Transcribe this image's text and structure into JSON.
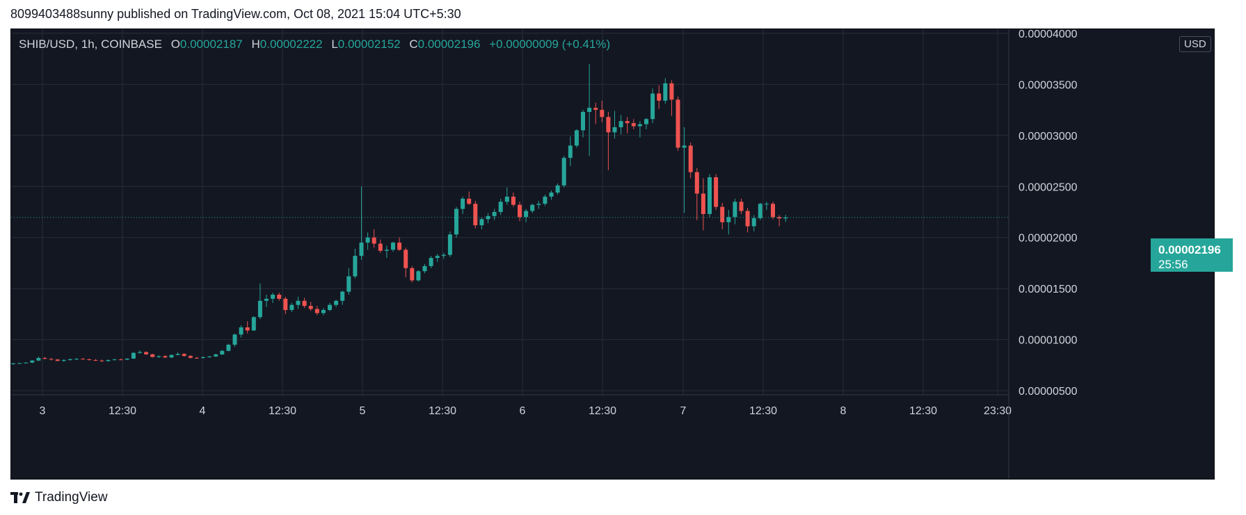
{
  "header": {
    "publish_line": "8099403488sunny published on TradingView.com, Oct 08, 2021 15:04 UTC+5:30"
  },
  "legend": {
    "symbol": "SHIB/USD, 1h, COINBASE",
    "open_label": "O",
    "open": "0.00002187",
    "high_label": "H",
    "high": "0.00002222",
    "low_label": "L",
    "low": "0.00002152",
    "close_label": "C",
    "close": "0.00002196",
    "change": "+0.00000009 (+0.41%)"
  },
  "currency": "USD",
  "last_price": {
    "price": "0.00002196",
    "countdown": "25:56"
  },
  "footer": {
    "brand": "TradingView"
  },
  "colors": {
    "background": "#131722",
    "grid": "#2a2e39",
    "text": "#d1d4dc",
    "up": "#26a69a",
    "down": "#ef5350"
  },
  "chart_data": {
    "type": "candlestick",
    "symbol": "SHIB/USD",
    "interval": "1h",
    "exchange": "COINBASE",
    "x_tick_labels": [
      "3",
      "12:30",
      "4",
      "12:30",
      "5",
      "12:30",
      "6",
      "12:30",
      "7",
      "12:30",
      "8",
      "12:30",
      "23:30"
    ],
    "y_tick_labels": [
      "0.00000500",
      "0.00001000",
      "0.00001500",
      "0.00002000",
      "0.00002500",
      "0.00003000",
      "0.00003500",
      "0.00004000"
    ],
    "y_ticks": [
      5e-06,
      1e-05,
      1.5e-05,
      2e-05,
      2.5e-05,
      3e-05,
      3.5e-05,
      4e-05
    ],
    "ylim": [
      4.6e-06,
      4.04e-05
    ],
    "grid": true,
    "last_price": 2.196e-05,
    "candles_unit": 1e-08,
    "candles": [
      [
        760,
        770,
        755,
        768
      ],
      [
        768,
        773,
        762,
        770
      ],
      [
        770,
        778,
        765,
        775
      ],
      [
        775,
        800,
        770,
        795
      ],
      [
        795,
        835,
        790,
        820
      ],
      [
        820,
        832,
        808,
        812
      ],
      [
        812,
        818,
        795,
        805
      ],
      [
        805,
        812,
        788,
        792
      ],
      [
        792,
        808,
        782,
        800
      ],
      [
        800,
        815,
        795,
        808
      ],
      [
        808,
        818,
        800,
        812
      ],
      [
        812,
        820,
        805,
        807
      ],
      [
        807,
        815,
        795,
        800
      ],
      [
        800,
        810,
        790,
        795
      ],
      [
        795,
        805,
        782,
        790
      ],
      [
        790,
        805,
        785,
        800
      ],
      [
        800,
        812,
        795,
        806
      ],
      [
        806,
        815,
        798,
        804
      ],
      [
        804,
        818,
        800,
        814
      ],
      [
        814,
        880,
        810,
        870
      ],
      [
        870,
        895,
        862,
        878
      ],
      [
        878,
        885,
        850,
        856
      ],
      [
        856,
        862,
        825,
        830
      ],
      [
        830,
        845,
        820,
        838
      ],
      [
        838,
        848,
        820,
        825
      ],
      [
        825,
        855,
        820,
        850
      ],
      [
        850,
        875,
        845,
        860
      ],
      [
        860,
        868,
        835,
        840
      ],
      [
        840,
        848,
        815,
        822
      ],
      [
        822,
        830,
        812,
        820
      ],
      [
        820,
        835,
        815,
        828
      ],
      [
        828,
        840,
        822,
        835
      ],
      [
        835,
        862,
        830,
        855
      ],
      [
        855,
        900,
        850,
        890
      ],
      [
        890,
        960,
        885,
        950
      ],
      [
        950,
        1060,
        930,
        1050
      ],
      [
        1050,
        1140,
        1020,
        1120
      ],
      [
        1120,
        1180,
        1060,
        1090
      ],
      [
        1090,
        1230,
        1085,
        1220
      ],
      [
        1220,
        1550,
        1200,
        1380
      ],
      [
        1380,
        1440,
        1320,
        1400
      ],
      [
        1400,
        1460,
        1360,
        1440
      ],
      [
        1440,
        1460,
        1380,
        1400
      ],
      [
        1400,
        1420,
        1250,
        1290
      ],
      [
        1290,
        1360,
        1270,
        1340
      ],
      [
        1340,
        1420,
        1300,
        1380
      ],
      [
        1380,
        1410,
        1310,
        1330
      ],
      [
        1330,
        1370,
        1280,
        1300
      ],
      [
        1300,
        1330,
        1240,
        1260
      ],
      [
        1260,
        1310,
        1240,
        1290
      ],
      [
        1290,
        1360,
        1280,
        1340
      ],
      [
        1340,
        1390,
        1320,
        1380
      ],
      [
        1380,
        1480,
        1340,
        1470
      ],
      [
        1470,
        1700,
        1440,
        1620
      ],
      [
        1620,
        1890,
        1600,
        1820
      ],
      [
        1820,
        2500,
        1780,
        1950
      ],
      [
        1950,
        2050,
        1880,
        2000
      ],
      [
        2000,
        2080,
        1900,
        1940
      ],
      [
        1940,
        1980,
        1850,
        1870
      ],
      [
        1870,
        1920,
        1800,
        1880
      ],
      [
        1880,
        1960,
        1860,
        1950
      ],
      [
        1950,
        2000,
        1870,
        1880
      ],
      [
        1880,
        1900,
        1610,
        1700
      ],
      [
        1700,
        1720,
        1560,
        1580
      ],
      [
        1580,
        1680,
        1570,
        1670
      ],
      [
        1670,
        1740,
        1650,
        1720
      ],
      [
        1720,
        1820,
        1700,
        1800
      ],
      [
        1800,
        1840,
        1760,
        1820
      ],
      [
        1820,
        1850,
        1790,
        1830
      ],
      [
        1830,
        2060,
        1810,
        2030
      ],
      [
        2030,
        2300,
        2000,
        2280
      ],
      [
        2280,
        2400,
        2230,
        2380
      ],
      [
        2380,
        2450,
        2320,
        2330
      ],
      [
        2330,
        2360,
        2090,
        2120
      ],
      [
        2120,
        2200,
        2080,
        2180
      ],
      [
        2180,
        2240,
        2140,
        2210
      ],
      [
        2210,
        2280,
        2170,
        2250
      ],
      [
        2250,
        2380,
        2220,
        2350
      ],
      [
        2350,
        2490,
        2320,
        2400
      ],
      [
        2400,
        2440,
        2300,
        2320
      ],
      [
        2320,
        2350,
        2160,
        2200
      ],
      [
        2200,
        2280,
        2150,
        2260
      ],
      [
        2260,
        2330,
        2240,
        2320
      ],
      [
        2320,
        2360,
        2280,
        2330
      ],
      [
        2330,
        2420,
        2310,
        2400
      ],
      [
        2400,
        2460,
        2370,
        2440
      ],
      [
        2440,
        2530,
        2420,
        2510
      ],
      [
        2510,
        2800,
        2490,
        2780
      ],
      [
        2780,
        2990,
        2700,
        2900
      ],
      [
        2900,
        3060,
        2880,
        3050
      ],
      [
        3050,
        3250,
        2980,
        3230
      ],
      [
        3230,
        3700,
        2800,
        3270
      ],
      [
        3270,
        3320,
        3110,
        3250
      ],
      [
        3250,
        3340,
        3130,
        3180
      ],
      [
        3180,
        3230,
        2660,
        3030
      ],
      [
        3030,
        3240,
        2970,
        3080
      ],
      [
        3080,
        3200,
        3010,
        3140
      ],
      [
        3140,
        3180,
        3020,
        3120
      ],
      [
        3120,
        3160,
        3060,
        3090
      ],
      [
        3090,
        3140,
        2980,
        3110
      ],
      [
        3110,
        3170,
        3060,
        3160
      ],
      [
        3160,
        3460,
        3120,
        3410
      ],
      [
        3410,
        3490,
        3260,
        3340
      ],
      [
        3340,
        3560,
        3310,
        3510
      ],
      [
        3510,
        3540,
        3190,
        3350
      ],
      [
        3350,
        3380,
        2850,
        2880
      ],
      [
        2880,
        3080,
        2240,
        2900
      ],
      [
        2900,
        2930,
        2580,
        2640
      ],
      [
        2640,
        2680,
        2170,
        2430
      ],
      [
        2430,
        2580,
        2070,
        2230
      ],
      [
        2230,
        2620,
        2200,
        2590
      ],
      [
        2590,
        2620,
        2270,
        2300
      ],
      [
        2300,
        2340,
        2080,
        2150
      ],
      [
        2150,
        2270,
        2030,
        2200
      ],
      [
        2200,
        2380,
        2130,
        2350
      ],
      [
        2350,
        2380,
        2230,
        2260
      ],
      [
        2260,
        2290,
        2050,
        2110
      ],
      [
        2110,
        2220,
        2060,
        2190
      ],
      [
        2190,
        2340,
        2170,
        2330
      ],
      [
        2330,
        2350,
        2270,
        2330
      ],
      [
        2330,
        2350,
        2180,
        2200
      ],
      [
        2200,
        2220,
        2110,
        2187
      ],
      [
        2187,
        2222,
        2152,
        2196
      ]
    ]
  }
}
